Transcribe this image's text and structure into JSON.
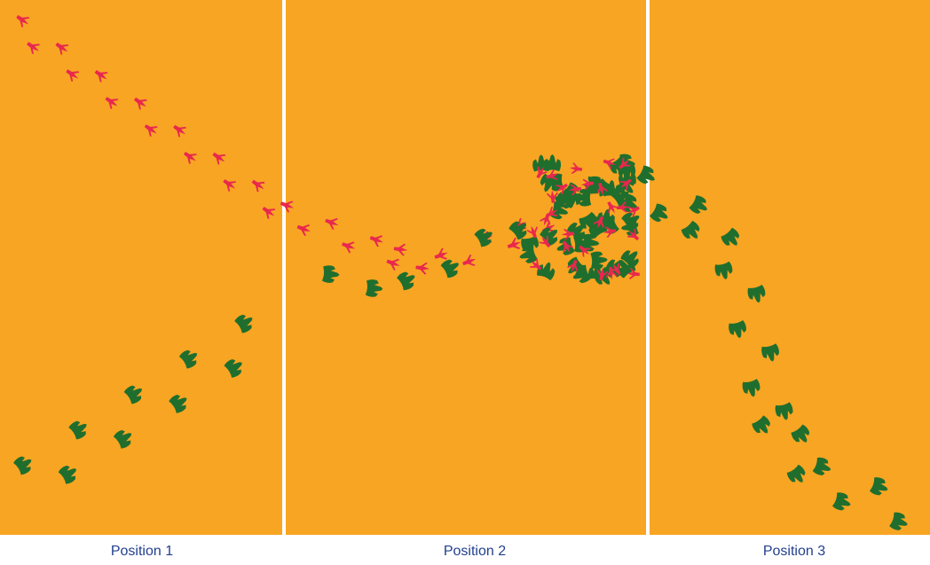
{
  "labels": [
    "Position 1",
    "Position 2",
    "Position 3"
  ]
}
